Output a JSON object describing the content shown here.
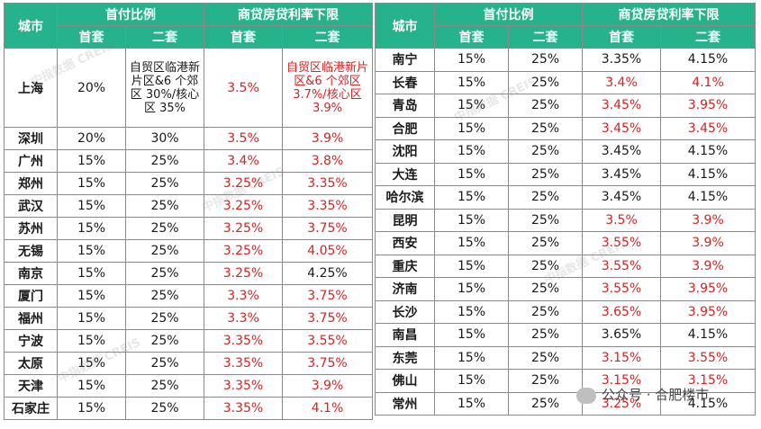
{
  "headers": {
    "city": "城市",
    "down_payment": "首付比例",
    "loan_rate": "商贷房贷利率下限",
    "first_home": "首套",
    "second_home": "二套"
  },
  "left_rows": [
    {
      "city": "上海",
      "dp1": "20%",
      "dp2": "自贸区临港新片区&6 个郊区 30%/核心区 35%",
      "r1": "3.5%",
      "r2": "自贸区临港新片区&6 个郊区 3.7%/核心区 3.9%"
    },
    {
      "city": "深圳",
      "dp1": "20%",
      "dp2": "30%",
      "r1": "3.5%",
      "r2": "3.9%"
    },
    {
      "city": "广州",
      "dp1": "15%",
      "dp2": "25%",
      "r1": "3.4%",
      "r2": "3.8%"
    },
    {
      "city": "郑州",
      "dp1": "15%",
      "dp2": "25%",
      "r1": "3.25%",
      "r2": "3.35%"
    },
    {
      "city": "武汉",
      "dp1": "15%",
      "dp2": "25%",
      "r1": "3.25%",
      "r2": "3.35%"
    },
    {
      "city": "苏州",
      "dp1": "15%",
      "dp2": "25%",
      "r1": "3.25%",
      "r2": "3.75%"
    },
    {
      "city": "无锡",
      "dp1": "15%",
      "dp2": "25%",
      "r1": "3.25%",
      "r2": "4.05%"
    },
    {
      "city": "南京",
      "dp1": "15%",
      "dp2": "25%",
      "r1": "3.25%",
      "r2": "4.25%"
    },
    {
      "city": "厦门",
      "dp1": "15%",
      "dp2": "25%",
      "r1": "3.3%",
      "r2": "3.75%"
    },
    {
      "city": "福州",
      "dp1": "15%",
      "dp2": "25%",
      "r1": "3.3%",
      "r2": "3.75%"
    },
    {
      "city": "宁波",
      "dp1": "15%",
      "dp2": "25%",
      "r1": "3.35%",
      "r2": "3.55%"
    },
    {
      "city": "太原",
      "dp1": "15%",
      "dp2": "25%",
      "r1": "3.35%",
      "r2": "3.75%"
    },
    {
      "city": "天津",
      "dp1": "15%",
      "dp2": "25%",
      "r1": "3.35%",
      "r2": "3.9%"
    },
    {
      "city": "石家庄",
      "dp1": "15%",
      "dp2": "25%",
      "r1": "3.35%",
      "r2": "4.1%"
    }
  ],
  "right_rows": [
    {
      "city": "南宁",
      "dp1": "15%",
      "dp2": "25%",
      "r1": "3.35%",
      "r2": "4.15%"
    },
    {
      "city": "长春",
      "dp1": "15%",
      "dp2": "25%",
      "r1": "3.4%",
      "r2": "4.1%"
    },
    {
      "city": "青岛",
      "dp1": "15%",
      "dp2": "25%",
      "r1": "3.45%",
      "r2": "3.95%"
    },
    {
      "city": "合肥",
      "dp1": "15%",
      "dp2": "25%",
      "r1": "3.45%",
      "r2": "3.45%"
    },
    {
      "city": "沈阳",
      "dp1": "15%",
      "dp2": "25%",
      "r1": "3.45%",
      "r2": "4.15%"
    },
    {
      "city": "大连",
      "dp1": "15%",
      "dp2": "25%",
      "r1": "3.45%",
      "r2": "4.15%"
    },
    {
      "city": "哈尔滨",
      "dp1": "15%",
      "dp2": "25%",
      "r1": "3.45%",
      "r2": "4.15%"
    },
    {
      "city": "昆明",
      "dp1": "15%",
      "dp2": "25%",
      "r1": "3.5%",
      "r2": "3.9%"
    },
    {
      "city": "西安",
      "dp1": "15%",
      "dp2": "25%",
      "r1": "3.55%",
      "r2": "3.9%"
    },
    {
      "city": "重庆",
      "dp1": "15%",
      "dp2": "25%",
      "r1": "3.55%",
      "r2": "3.9%"
    },
    {
      "city": "济南",
      "dp1": "15%",
      "dp2": "25%",
      "r1": "3.55%",
      "r2": "3.95%"
    },
    {
      "city": "长沙",
      "dp1": "15%",
      "dp2": "25%",
      "r1": "3.65%",
      "r2": "3.95%"
    },
    {
      "city": "南昌",
      "dp1": "15%",
      "dp2": "25%",
      "r1": "3.65%",
      "r2": "4.15%"
    },
    {
      "city": "东莞",
      "dp1": "15%",
      "dp2": "25%",
      "r1": "3.15%",
      "r2": "3.55%"
    },
    {
      "city": "佛山",
      "dp1": "15%",
      "dp2": "25%",
      "r1": "3.15%",
      "r2": "3.15%"
    },
    {
      "city": "常州",
      "dp1": "15%",
      "dp2": "25%",
      "r1": "3.25%",
      "r2": "4.15%"
    }
  ],
  "left_red": [
    [
      false,
      true,
      true
    ],
    [
      false,
      true,
      true
    ],
    [
      false,
      true,
      true
    ],
    [
      false,
      true,
      true
    ],
    [
      false,
      true,
      true
    ],
    [
      false,
      true,
      true
    ],
    [
      false,
      true,
      true
    ],
    [
      false,
      true,
      false
    ],
    [
      false,
      true,
      true
    ],
    [
      false,
      true,
      true
    ],
    [
      false,
      true,
      true
    ],
    [
      false,
      true,
      true
    ],
    [
      false,
      true,
      true
    ],
    [
      false,
      true,
      true
    ]
  ],
  "right_red": [
    [
      false,
      false,
      false
    ],
    [
      false,
      true,
      true
    ],
    [
      false,
      true,
      true
    ],
    [
      false,
      true,
      true
    ],
    [
      false,
      false,
      false
    ],
    [
      false,
      false,
      false
    ],
    [
      false,
      false,
      false
    ],
    [
      false,
      true,
      true
    ],
    [
      false,
      true,
      true
    ],
    [
      false,
      true,
      true
    ],
    [
      false,
      true,
      true
    ],
    [
      false,
      true,
      true
    ],
    [
      false,
      false,
      false
    ],
    [
      false,
      true,
      true
    ],
    [
      false,
      true,
      true
    ],
    [
      false,
      true,
      false
    ]
  ],
  "watermark_text": "中指数据 CREIS",
  "badge_text": "公众号 · 合肥楼市",
  "colors": {
    "header_bg": "#26b38c",
    "highlight": "#d42424",
    "text": "#1a1a1a"
  }
}
